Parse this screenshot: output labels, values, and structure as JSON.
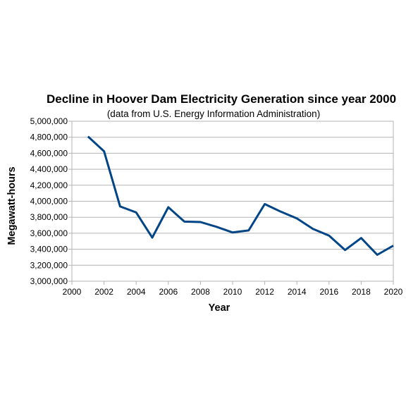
{
  "chart_data": {
    "type": "line",
    "title": "Decline in Hoover Dam Electricity Generation since year 2000",
    "subtitle": "(data from U.S. Energy Information Administration)",
    "xlabel": "Year",
    "ylabel": "Megawatt-hours",
    "xlim": [
      2000,
      2020
    ],
    "ylim": [
      3000000,
      5000000
    ],
    "x_ticks": [
      2000,
      2002,
      2004,
      2006,
      2008,
      2010,
      2012,
      2014,
      2016,
      2018,
      2020
    ],
    "y_ticks": [
      3000000,
      3200000,
      3400000,
      3600000,
      3800000,
      4000000,
      4200000,
      4400000,
      4600000,
      4800000,
      5000000
    ],
    "x_tick_labels": [
      "2000",
      "2002",
      "2004",
      "2006",
      "2008",
      "2010",
      "2012",
      "2014",
      "2016",
      "2018",
      "2020"
    ],
    "y_tick_labels": [
      "3,000,000",
      "3,200,000",
      "3,400,000",
      "3,600,000",
      "3,800,000",
      "4,000,000",
      "4,200,000",
      "4,400,000",
      "4,600,000",
      "4,800,000",
      "5,000,000"
    ],
    "grid": "horizontal",
    "legend": "none",
    "series_color": "#004586",
    "series": [
      {
        "x": [
          2001,
          2002,
          2003,
          2004,
          2005,
          2006,
          2007,
          2008,
          2009,
          2010,
          2011,
          2012,
          2013,
          2014,
          2015,
          2016,
          2017,
          2018,
          2019,
          2020
        ],
        "values": [
          4810000,
          4625000,
          3935000,
          3860000,
          3545000,
          3925000,
          3745000,
          3740000,
          3680000,
          3610000,
          3635000,
          3965000,
          3870000,
          3785000,
          3655000,
          3570000,
          3390000,
          3540000,
          3330000,
          3445000
        ]
      }
    ]
  }
}
